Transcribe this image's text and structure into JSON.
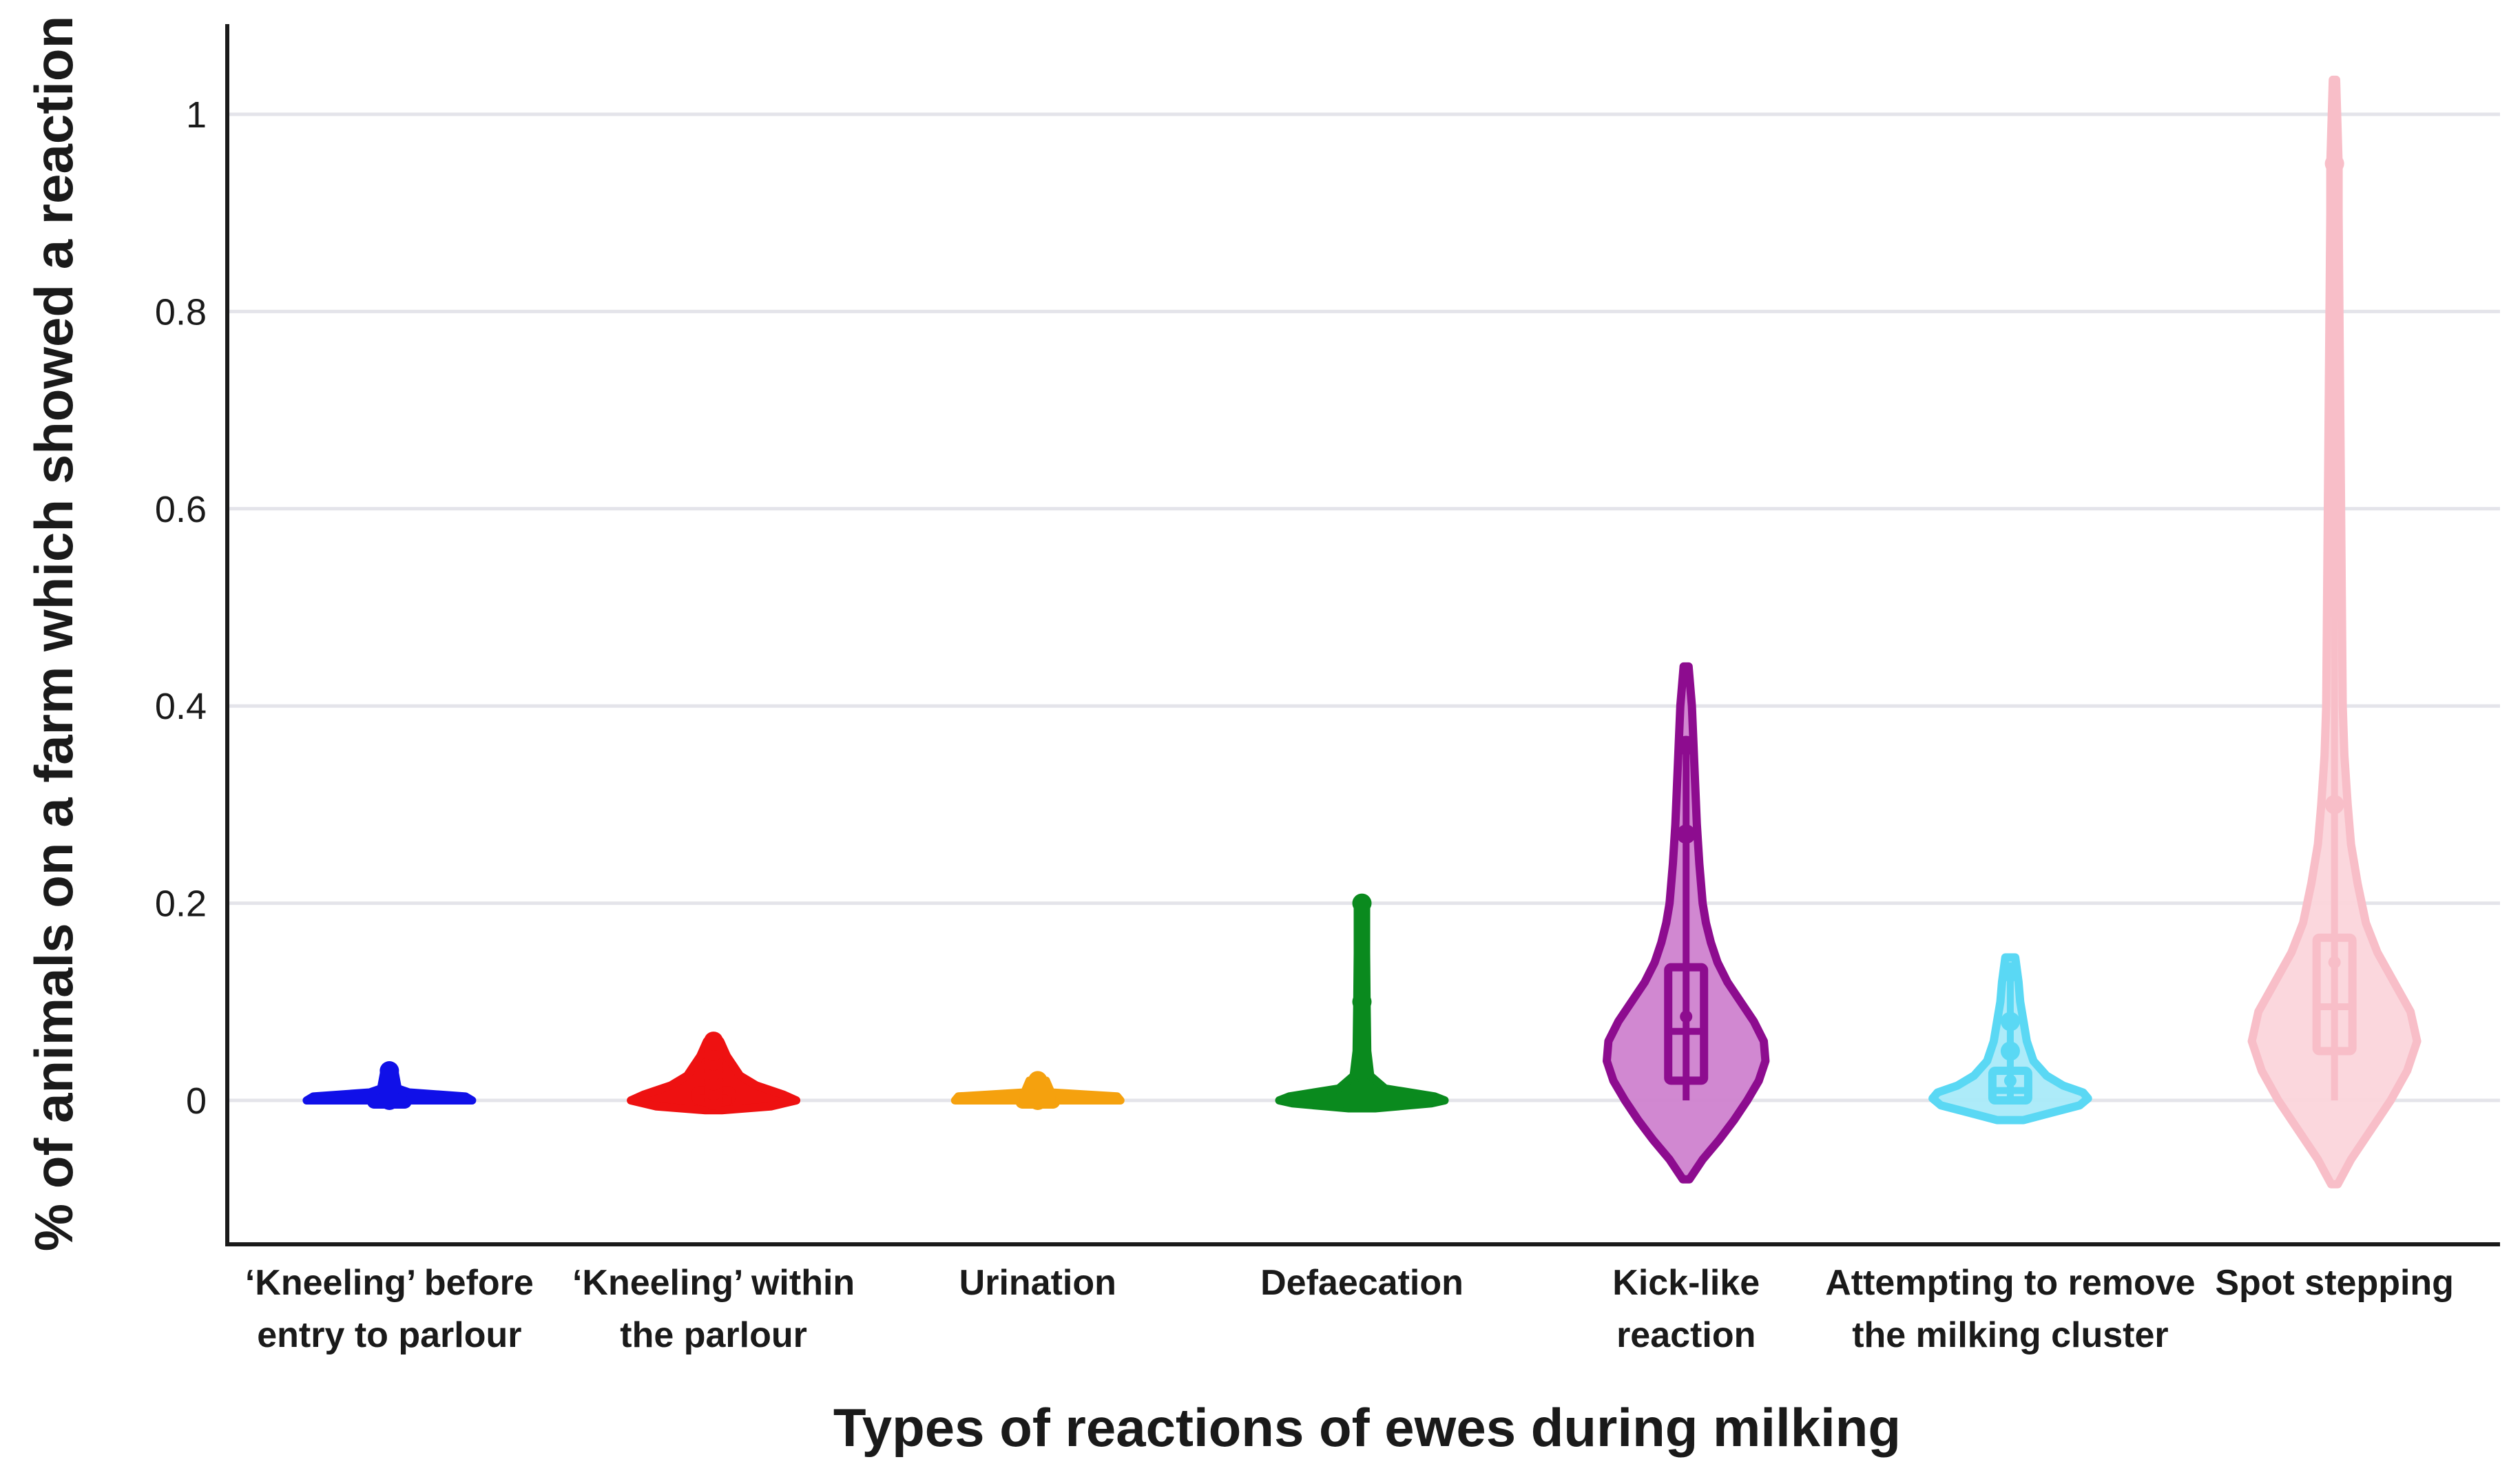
{
  "chart_data": {
    "type": "violin",
    "title": "",
    "xlabel": "Types of reactions of ewes during milking",
    "ylabel": "% of animals on a farm which showed a reaction",
    "ylim": [
      -0.16,
      1.06
    ],
    "yticks": [
      0,
      0.2,
      0.4,
      0.6,
      0.8,
      1
    ],
    "ytick_labels": [
      "0",
      "0.2",
      "0.4",
      "0.6",
      "0.8",
      "1"
    ],
    "grid": true,
    "series": [
      {
        "name": "'Kneeling' before entry to parlour",
        "label_lines": [
          "‘Kneeling’ before",
          "entry to parlour"
        ],
        "color": "#1010e8",
        "min": 0,
        "q1": 0,
        "median": 0,
        "q3": 0,
        "max": 0.03,
        "mean": 0.002,
        "points": [
          0,
          0.01,
          0.03
        ],
        "density_top": 0.012,
        "density_bottom": 0,
        "profile": [
          [
            0,
            0.5
          ],
          [
            0.004,
            0.46
          ],
          [
            0.008,
            0.12
          ],
          [
            0.012,
            0.05
          ],
          [
            0.03,
            0.03
          ]
        ]
      },
      {
        "name": "'Kneeling' within the parlour",
        "label_lines": [
          "‘Kneeling’ within",
          "the parlour"
        ],
        "color": "#ee1111",
        "min": 0,
        "q1": 0,
        "median": 0,
        "q3": 0.01,
        "max": 0.06,
        "mean": 0.008,
        "points": [
          0,
          0.01,
          0.02,
          0.03,
          0.04,
          0.05,
          0.06
        ],
        "density_top": 0.06,
        "density_bottom": -0.01,
        "profile": [
          [
            -0.01,
            0.05
          ],
          [
            -0.006,
            0.35
          ],
          [
            0,
            0.5
          ],
          [
            0.006,
            0.42
          ],
          [
            0.015,
            0.26
          ],
          [
            0.025,
            0.16
          ],
          [
            0.035,
            0.12
          ],
          [
            0.045,
            0.08
          ],
          [
            0.06,
            0.04
          ]
        ]
      },
      {
        "name": "Urination",
        "label_lines": [
          "Urination"
        ],
        "color": "#f5a10e",
        "min": 0,
        "q1": 0,
        "median": 0,
        "q3": 0,
        "max": 0.02,
        "mean": 0.001,
        "points": [
          0,
          0.01,
          0.02
        ],
        "density_top": 0.02,
        "density_bottom": 0,
        "profile": [
          [
            0,
            0.5
          ],
          [
            0.004,
            0.48
          ],
          [
            0.008,
            0.08
          ],
          [
            0.02,
            0.05
          ]
        ]
      },
      {
        "name": "Defaecation",
        "label_lines": [
          "Defaecation"
        ],
        "color": "#0a8a1e",
        "min": 0,
        "q1": 0,
        "median": 0,
        "q3": 0,
        "max": 0.2,
        "mean": 0.01,
        "points": [
          0,
          0.01,
          0.03,
          0.1,
          0.2
        ],
        "density_top": 0.2,
        "density_bottom": -0.008,
        "profile": [
          [
            -0.008,
            0.08
          ],
          [
            -0.003,
            0.42
          ],
          [
            0,
            0.5
          ],
          [
            0.004,
            0.44
          ],
          [
            0.012,
            0.14
          ],
          [
            0.025,
            0.05
          ],
          [
            0.05,
            0.032
          ],
          [
            0.1,
            0.028
          ],
          [
            0.15,
            0.025
          ],
          [
            0.2,
            0.025
          ]
        ]
      },
      {
        "name": "Kick-like reaction",
        "label_lines": [
          "Kick-like",
          "reaction"
        ],
        "color": "#8d0c8f",
        "fill": "#cf82cf",
        "min": 0,
        "q1": 0.02,
        "median": 0.07,
        "q3": 0.135,
        "max": 0.36,
        "mean": 0.085,
        "points": [
          0.27,
          0.36
        ],
        "density_top": 0.44,
        "density_bottom": -0.08,
        "profile": [
          [
            -0.08,
            0.02
          ],
          [
            -0.06,
            0.1
          ],
          [
            -0.04,
            0.2
          ],
          [
            -0.02,
            0.29
          ],
          [
            0,
            0.37
          ],
          [
            0.02,
            0.44
          ],
          [
            0.04,
            0.48
          ],
          [
            0.06,
            0.47
          ],
          [
            0.08,
            0.41
          ],
          [
            0.1,
            0.33
          ],
          [
            0.12,
            0.25
          ],
          [
            0.14,
            0.19
          ],
          [
            0.16,
            0.15
          ],
          [
            0.18,
            0.12
          ],
          [
            0.2,
            0.1
          ],
          [
            0.24,
            0.08
          ],
          [
            0.28,
            0.065
          ],
          [
            0.32,
            0.055
          ],
          [
            0.36,
            0.045
          ],
          [
            0.4,
            0.035
          ],
          [
            0.44,
            0.015
          ]
        ]
      },
      {
        "name": "Attempting to remove the milking cluster",
        "label_lines": [
          "Attempting to remove",
          "the milking cluster"
        ],
        "color": "#5ad8f4",
        "fill": "#a9eaf9",
        "min": 0,
        "q1": 0,
        "median": 0.01,
        "q3": 0.03,
        "max": 0.14,
        "mean": 0.02,
        "points": [
          0.05,
          0.08,
          0.13
        ],
        "density_top": 0.145,
        "density_bottom": -0.02,
        "profile": [
          [
            -0.02,
            0.08
          ],
          [
            -0.012,
            0.26
          ],
          [
            -0.005,
            0.42
          ],
          [
            0.002,
            0.47
          ],
          [
            0.008,
            0.44
          ],
          [
            0.015,
            0.32
          ],
          [
            0.025,
            0.22
          ],
          [
            0.04,
            0.14
          ],
          [
            0.06,
            0.1
          ],
          [
            0.08,
            0.08
          ],
          [
            0.1,
            0.06
          ],
          [
            0.12,
            0.05
          ],
          [
            0.145,
            0.03
          ]
        ]
      },
      {
        "name": "Spot stepping",
        "label_lines": [
          "Spot stepping"
        ],
        "color": "#f8bec8",
        "fill": "#fbd5db",
        "min": 0,
        "q1": 0.05,
        "median": 0.095,
        "q3": 0.165,
        "max": 0.95,
        "mean": 0.14,
        "points": [
          0.3,
          0.5,
          0.62,
          0.95
        ],
        "density_top": 1.035,
        "density_bottom": -0.085,
        "profile": [
          [
            -0.085,
            0.02
          ],
          [
            -0.06,
            0.1
          ],
          [
            -0.03,
            0.22
          ],
          [
            0,
            0.34
          ],
          [
            0.03,
            0.44
          ],
          [
            0.06,
            0.5
          ],
          [
            0.09,
            0.46
          ],
          [
            0.12,
            0.36
          ],
          [
            0.15,
            0.26
          ],
          [
            0.18,
            0.19
          ],
          [
            0.22,
            0.14
          ],
          [
            0.26,
            0.1
          ],
          [
            0.3,
            0.08
          ],
          [
            0.35,
            0.06
          ],
          [
            0.4,
            0.05
          ],
          [
            0.5,
            0.045
          ],
          [
            0.6,
            0.04
          ],
          [
            0.7,
            0.035
          ],
          [
            0.8,
            0.03
          ],
          [
            0.9,
            0.025
          ],
          [
            0.95,
            0.025
          ],
          [
            1.035,
            0.01
          ]
        ]
      }
    ]
  }
}
